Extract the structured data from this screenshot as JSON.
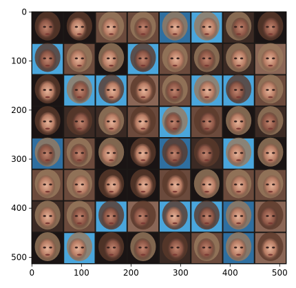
{
  "chart_data": {
    "type": "image",
    "xlim": [
      -0.5,
      513.5
    ],
    "ylim": [
      513.5,
      -0.5
    ],
    "xticks": [
      0,
      100,
      200,
      300,
      400,
      500
    ],
    "yticks": [
      0,
      100,
      200,
      300,
      400,
      500
    ]
  }
}
